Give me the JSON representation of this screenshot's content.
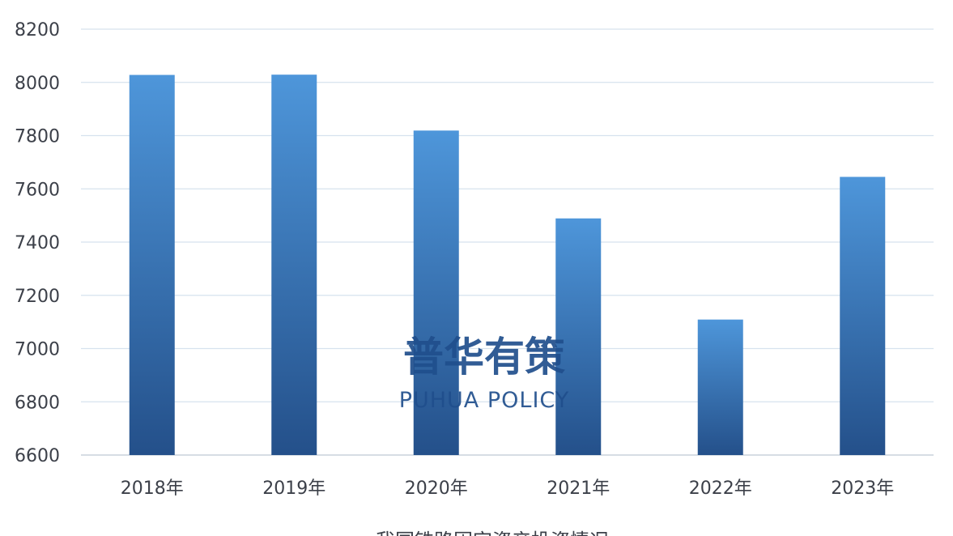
{
  "chart_data": {
    "type": "bar",
    "title": "我国铁路固定资产投资情况",
    "categories": [
      "2018年",
      "2019年",
      "2020年",
      "2021年",
      "2022年",
      "2023年"
    ],
    "values": [
      8028,
      8029,
      7819,
      7489,
      7109,
      7645
    ],
    "ylim": [
      6600,
      8200
    ],
    "yticks": [
      6600,
      6800,
      7000,
      7200,
      7400,
      7600,
      7800,
      8000,
      8200
    ],
    "grid": true,
    "bar_color_top": "#4e96da",
    "bar_color_bottom": "#24508a"
  },
  "watermark": {
    "cn": "普华有策",
    "en": "PUHUA POLICY"
  }
}
